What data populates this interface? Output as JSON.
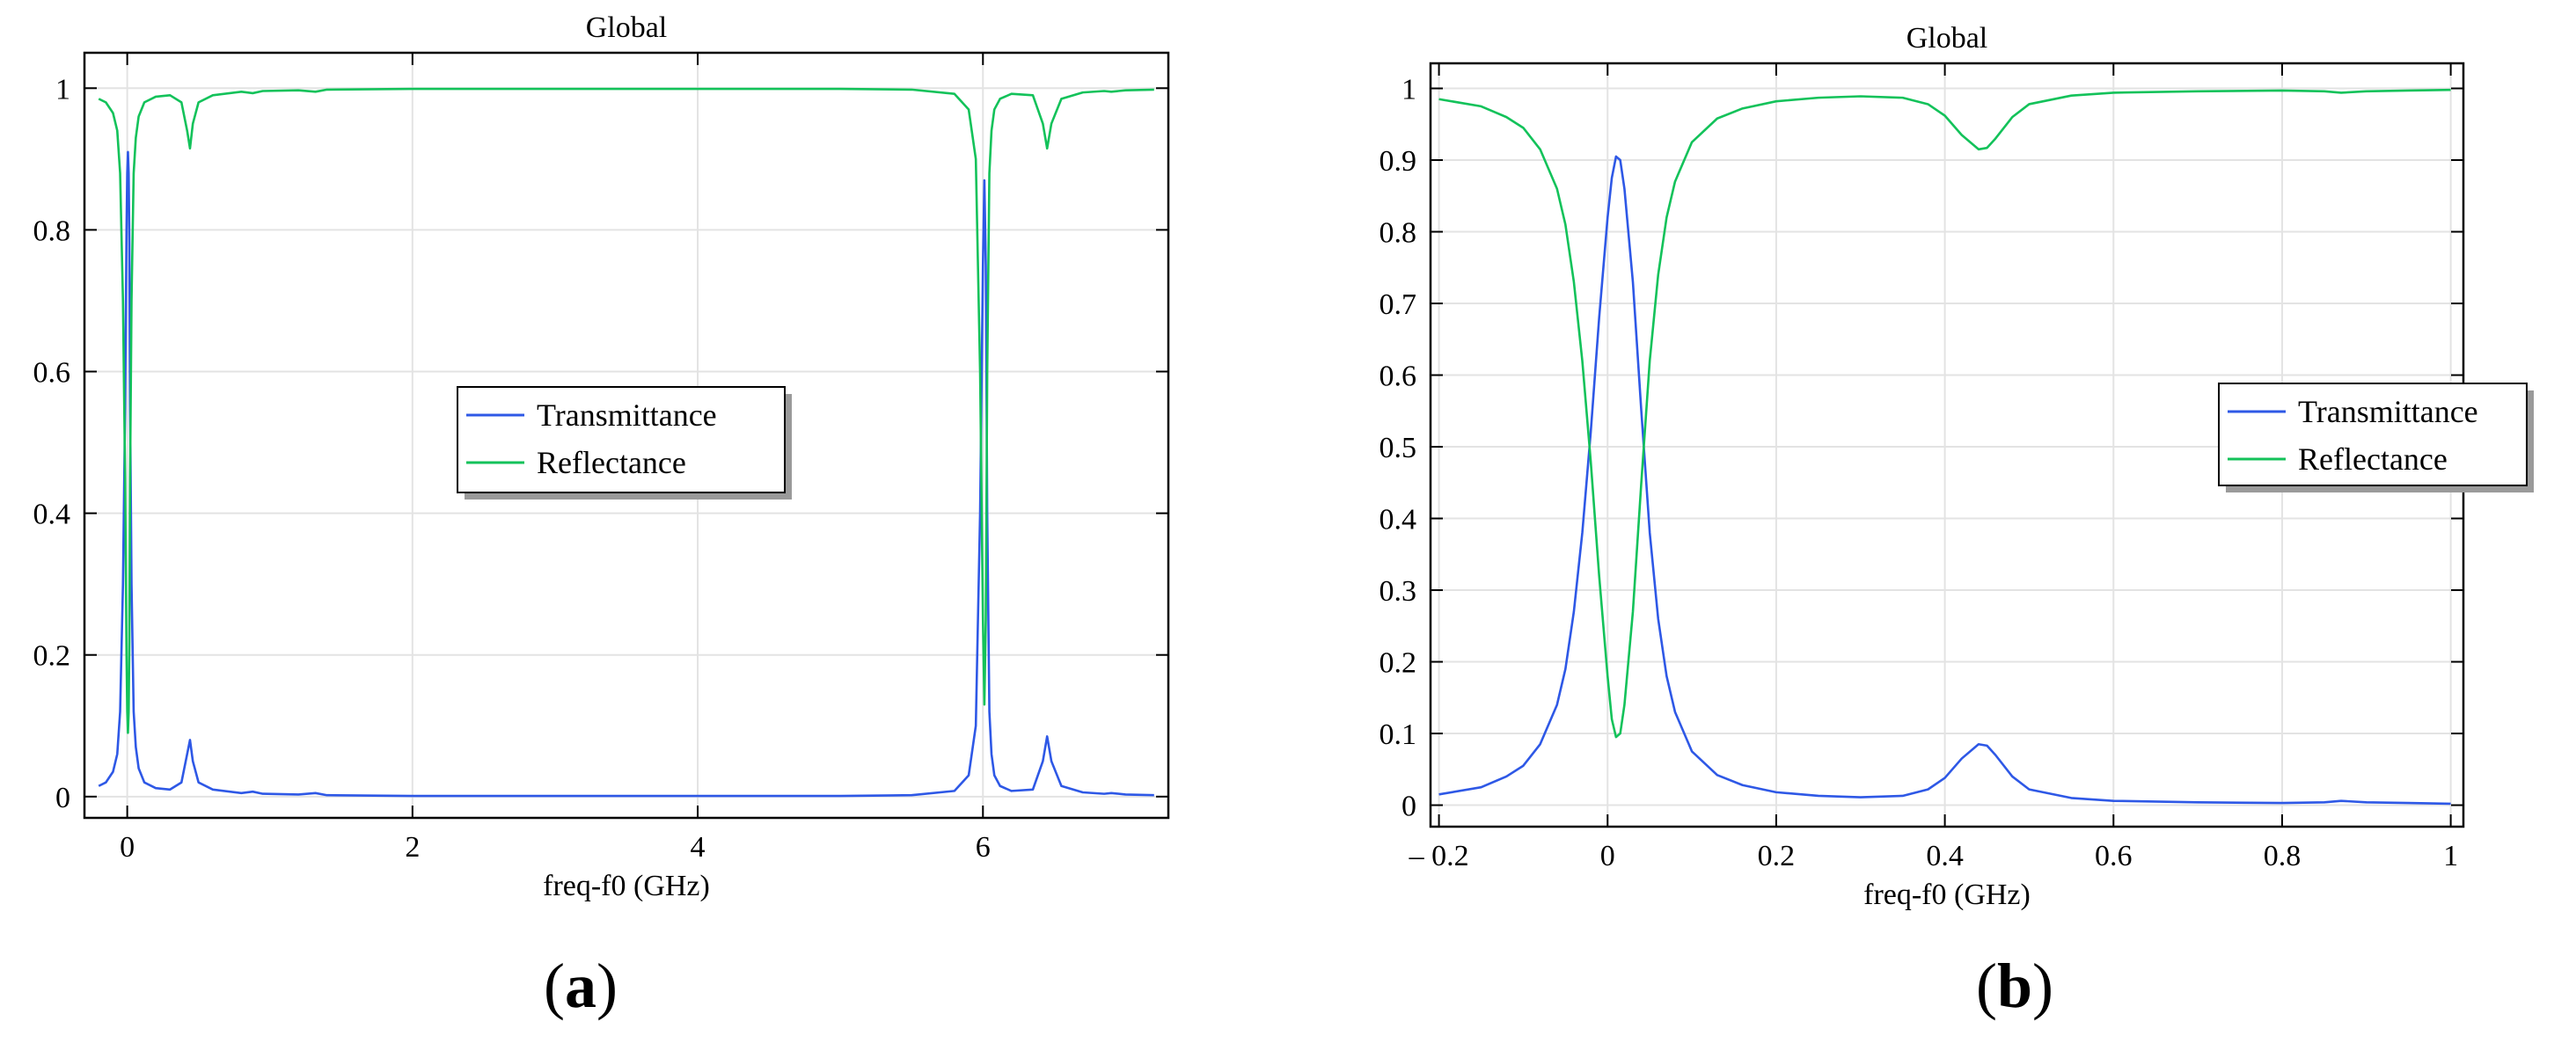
{
  "colors": {
    "transmittance": "#2e58e6",
    "reflectance": "#13c25a",
    "grid": "#e3e3e3",
    "axis": "#000000"
  },
  "panels": [
    {
      "caption_open": "(",
      "caption_letter": "a",
      "caption_close": ")"
    },
    {
      "caption_open": "(",
      "caption_letter": "b",
      "caption_close": ")"
    }
  ],
  "chart_data": [
    {
      "type": "line",
      "title": "Global",
      "xlabel": "freq-f0 (GHz)",
      "ylabel": "",
      "xlim": [
        -0.3,
        7.3
      ],
      "ylim": [
        -0.03,
        1.05
      ],
      "xticks": [
        0,
        2,
        4,
        6
      ],
      "xtick_labels": [
        "0",
        "2",
        "4",
        "6"
      ],
      "yticks": [
        0,
        0.2,
        0.4,
        0.6,
        0.8,
        1
      ],
      "ytick_labels": [
        "0",
        "0.2",
        "0.4",
        "0.6",
        "0.8",
        "1"
      ],
      "grid": true,
      "legend": "center",
      "series": [
        {
          "name": "Transmittance",
          "x": [
            -0.2,
            -0.15,
            -0.1,
            -0.07,
            -0.05,
            -0.03,
            -0.015,
            -0.005,
            0.0,
            0.005,
            0.01,
            0.015,
            0.02,
            0.03,
            0.045,
            0.06,
            0.08,
            0.12,
            0.2,
            0.3,
            0.38,
            0.42,
            0.44,
            0.46,
            0.5,
            0.6,
            0.8,
            0.88,
            0.95,
            1.2,
            1.32,
            1.4,
            2.0,
            3.0,
            4.0,
            5.0,
            5.5,
            5.8,
            5.9,
            5.95,
            5.98,
            6.0,
            6.01,
            6.02,
            6.03,
            6.045,
            6.06,
            6.08,
            6.12,
            6.2,
            6.35,
            6.42,
            6.45,
            6.48,
            6.55,
            6.7,
            6.85,
            6.9,
            7.0,
            7.2
          ],
          "y": [
            0.015,
            0.02,
            0.035,
            0.06,
            0.12,
            0.3,
            0.55,
            0.8,
            0.88,
            0.91,
            0.88,
            0.78,
            0.55,
            0.3,
            0.12,
            0.07,
            0.04,
            0.02,
            0.012,
            0.01,
            0.02,
            0.06,
            0.08,
            0.05,
            0.02,
            0.01,
            0.005,
            0.007,
            0.004,
            0.003,
            0.005,
            0.002,
            0.001,
            0.001,
            0.001,
            0.001,
            0.002,
            0.008,
            0.03,
            0.1,
            0.4,
            0.75,
            0.87,
            0.75,
            0.4,
            0.12,
            0.06,
            0.03,
            0.015,
            0.008,
            0.01,
            0.05,
            0.085,
            0.05,
            0.015,
            0.006,
            0.004,
            0.005,
            0.003,
            0.002
          ]
        },
        {
          "name": "Reflectance",
          "x": [
            -0.2,
            -0.15,
            -0.1,
            -0.07,
            -0.05,
            -0.03,
            -0.015,
            -0.005,
            0.0,
            0.005,
            0.01,
            0.015,
            0.02,
            0.03,
            0.045,
            0.06,
            0.08,
            0.12,
            0.2,
            0.3,
            0.38,
            0.42,
            0.44,
            0.46,
            0.5,
            0.6,
            0.8,
            0.88,
            0.95,
            1.2,
            1.32,
            1.4,
            2.0,
            3.0,
            4.0,
            5.0,
            5.5,
            5.8,
            5.9,
            5.95,
            5.98,
            6.0,
            6.01,
            6.02,
            6.03,
            6.045,
            6.06,
            6.08,
            6.12,
            6.2,
            6.35,
            6.42,
            6.45,
            6.48,
            6.55,
            6.7,
            6.85,
            6.9,
            7.0,
            7.2
          ],
          "y": [
            0.985,
            0.98,
            0.965,
            0.94,
            0.88,
            0.7,
            0.45,
            0.2,
            0.12,
            0.09,
            0.12,
            0.22,
            0.45,
            0.7,
            0.88,
            0.93,
            0.96,
            0.98,
            0.988,
            0.99,
            0.98,
            0.94,
            0.915,
            0.95,
            0.98,
            0.99,
            0.995,
            0.993,
            0.996,
            0.997,
            0.995,
            0.998,
            0.999,
            0.999,
            0.999,
            0.999,
            0.998,
            0.992,
            0.97,
            0.9,
            0.6,
            0.25,
            0.13,
            0.25,
            0.6,
            0.88,
            0.94,
            0.97,
            0.985,
            0.992,
            0.99,
            0.95,
            0.915,
            0.95,
            0.985,
            0.994,
            0.996,
            0.995,
            0.997,
            0.998
          ]
        }
      ]
    },
    {
      "type": "line",
      "title": "Global",
      "xlabel": "freq-f0 (GHz)",
      "ylabel": "",
      "xlim": [
        -0.21,
        1.015
      ],
      "ylim": [
        -0.03,
        1.035
      ],
      "xticks": [
        -0.2,
        0,
        0.2,
        0.4,
        0.6,
        0.8,
        1
      ],
      "xtick_labels": [
        "– 0.2",
        "0",
        "0.2",
        "0.4",
        "0.6",
        "0.8",
        "1"
      ],
      "yticks": [
        0,
        0.1,
        0.2,
        0.3,
        0.4,
        0.5,
        0.6,
        0.7,
        0.8,
        0.9,
        1
      ],
      "ytick_labels": [
        "0",
        "0.1",
        "0.2",
        "0.3",
        "0.4",
        "0.5",
        "0.6",
        "0.7",
        "0.8",
        "0.9",
        "1"
      ],
      "grid": true,
      "legend": "center-right",
      "series": [
        {
          "name": "Transmittance",
          "x": [
            -0.2,
            -0.15,
            -0.12,
            -0.1,
            -0.08,
            -0.06,
            -0.05,
            -0.04,
            -0.03,
            -0.02,
            -0.01,
            0.0,
            0.005,
            0.01,
            0.015,
            0.02,
            0.03,
            0.04,
            0.05,
            0.06,
            0.07,
            0.08,
            0.1,
            0.13,
            0.16,
            0.2,
            0.25,
            0.3,
            0.35,
            0.38,
            0.4,
            0.42,
            0.44,
            0.45,
            0.46,
            0.48,
            0.5,
            0.55,
            0.6,
            0.7,
            0.8,
            0.85,
            0.87,
            0.9,
            0.95,
            1.0
          ],
          "y": [
            0.015,
            0.025,
            0.04,
            0.055,
            0.085,
            0.14,
            0.19,
            0.27,
            0.38,
            0.52,
            0.68,
            0.82,
            0.875,
            0.905,
            0.9,
            0.86,
            0.73,
            0.55,
            0.38,
            0.26,
            0.18,
            0.13,
            0.075,
            0.042,
            0.028,
            0.018,
            0.013,
            0.011,
            0.013,
            0.022,
            0.038,
            0.065,
            0.085,
            0.083,
            0.07,
            0.04,
            0.022,
            0.01,
            0.006,
            0.004,
            0.003,
            0.004,
            0.006,
            0.004,
            0.003,
            0.002
          ]
        },
        {
          "name": "Reflectance",
          "x": [
            -0.2,
            -0.15,
            -0.12,
            -0.1,
            -0.08,
            -0.06,
            -0.05,
            -0.04,
            -0.03,
            -0.02,
            -0.01,
            0.0,
            0.005,
            0.01,
            0.015,
            0.02,
            0.03,
            0.04,
            0.05,
            0.06,
            0.07,
            0.08,
            0.1,
            0.13,
            0.16,
            0.2,
            0.25,
            0.3,
            0.35,
            0.38,
            0.4,
            0.42,
            0.44,
            0.45,
            0.46,
            0.48,
            0.5,
            0.55,
            0.6,
            0.7,
            0.8,
            0.85,
            0.87,
            0.9,
            0.95,
            1.0
          ],
          "y": [
            0.985,
            0.975,
            0.96,
            0.945,
            0.915,
            0.86,
            0.81,
            0.73,
            0.62,
            0.48,
            0.32,
            0.18,
            0.12,
            0.095,
            0.1,
            0.14,
            0.27,
            0.45,
            0.62,
            0.74,
            0.82,
            0.87,
            0.925,
            0.958,
            0.972,
            0.982,
            0.987,
            0.989,
            0.987,
            0.978,
            0.962,
            0.935,
            0.915,
            0.917,
            0.93,
            0.96,
            0.978,
            0.99,
            0.994,
            0.996,
            0.997,
            0.996,
            0.994,
            0.996,
            0.997,
            0.998
          ]
        }
      ]
    }
  ]
}
